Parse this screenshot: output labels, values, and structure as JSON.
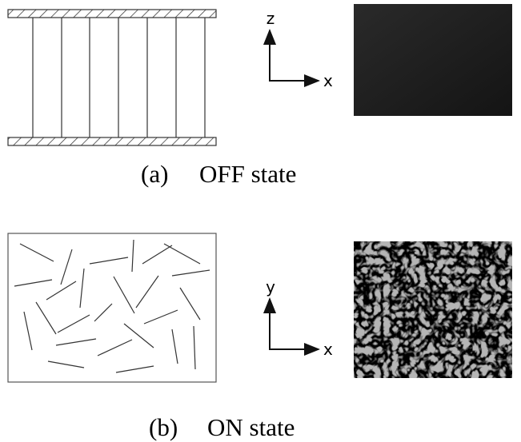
{
  "panel_a": {
    "axis_vertical": "z",
    "axis_horizontal": "x",
    "label": "(a)",
    "caption": "OFF state"
  },
  "panel_b": {
    "axis_vertical": "y",
    "axis_horizontal": "x",
    "label": "(b)",
    "caption": "ON state"
  }
}
